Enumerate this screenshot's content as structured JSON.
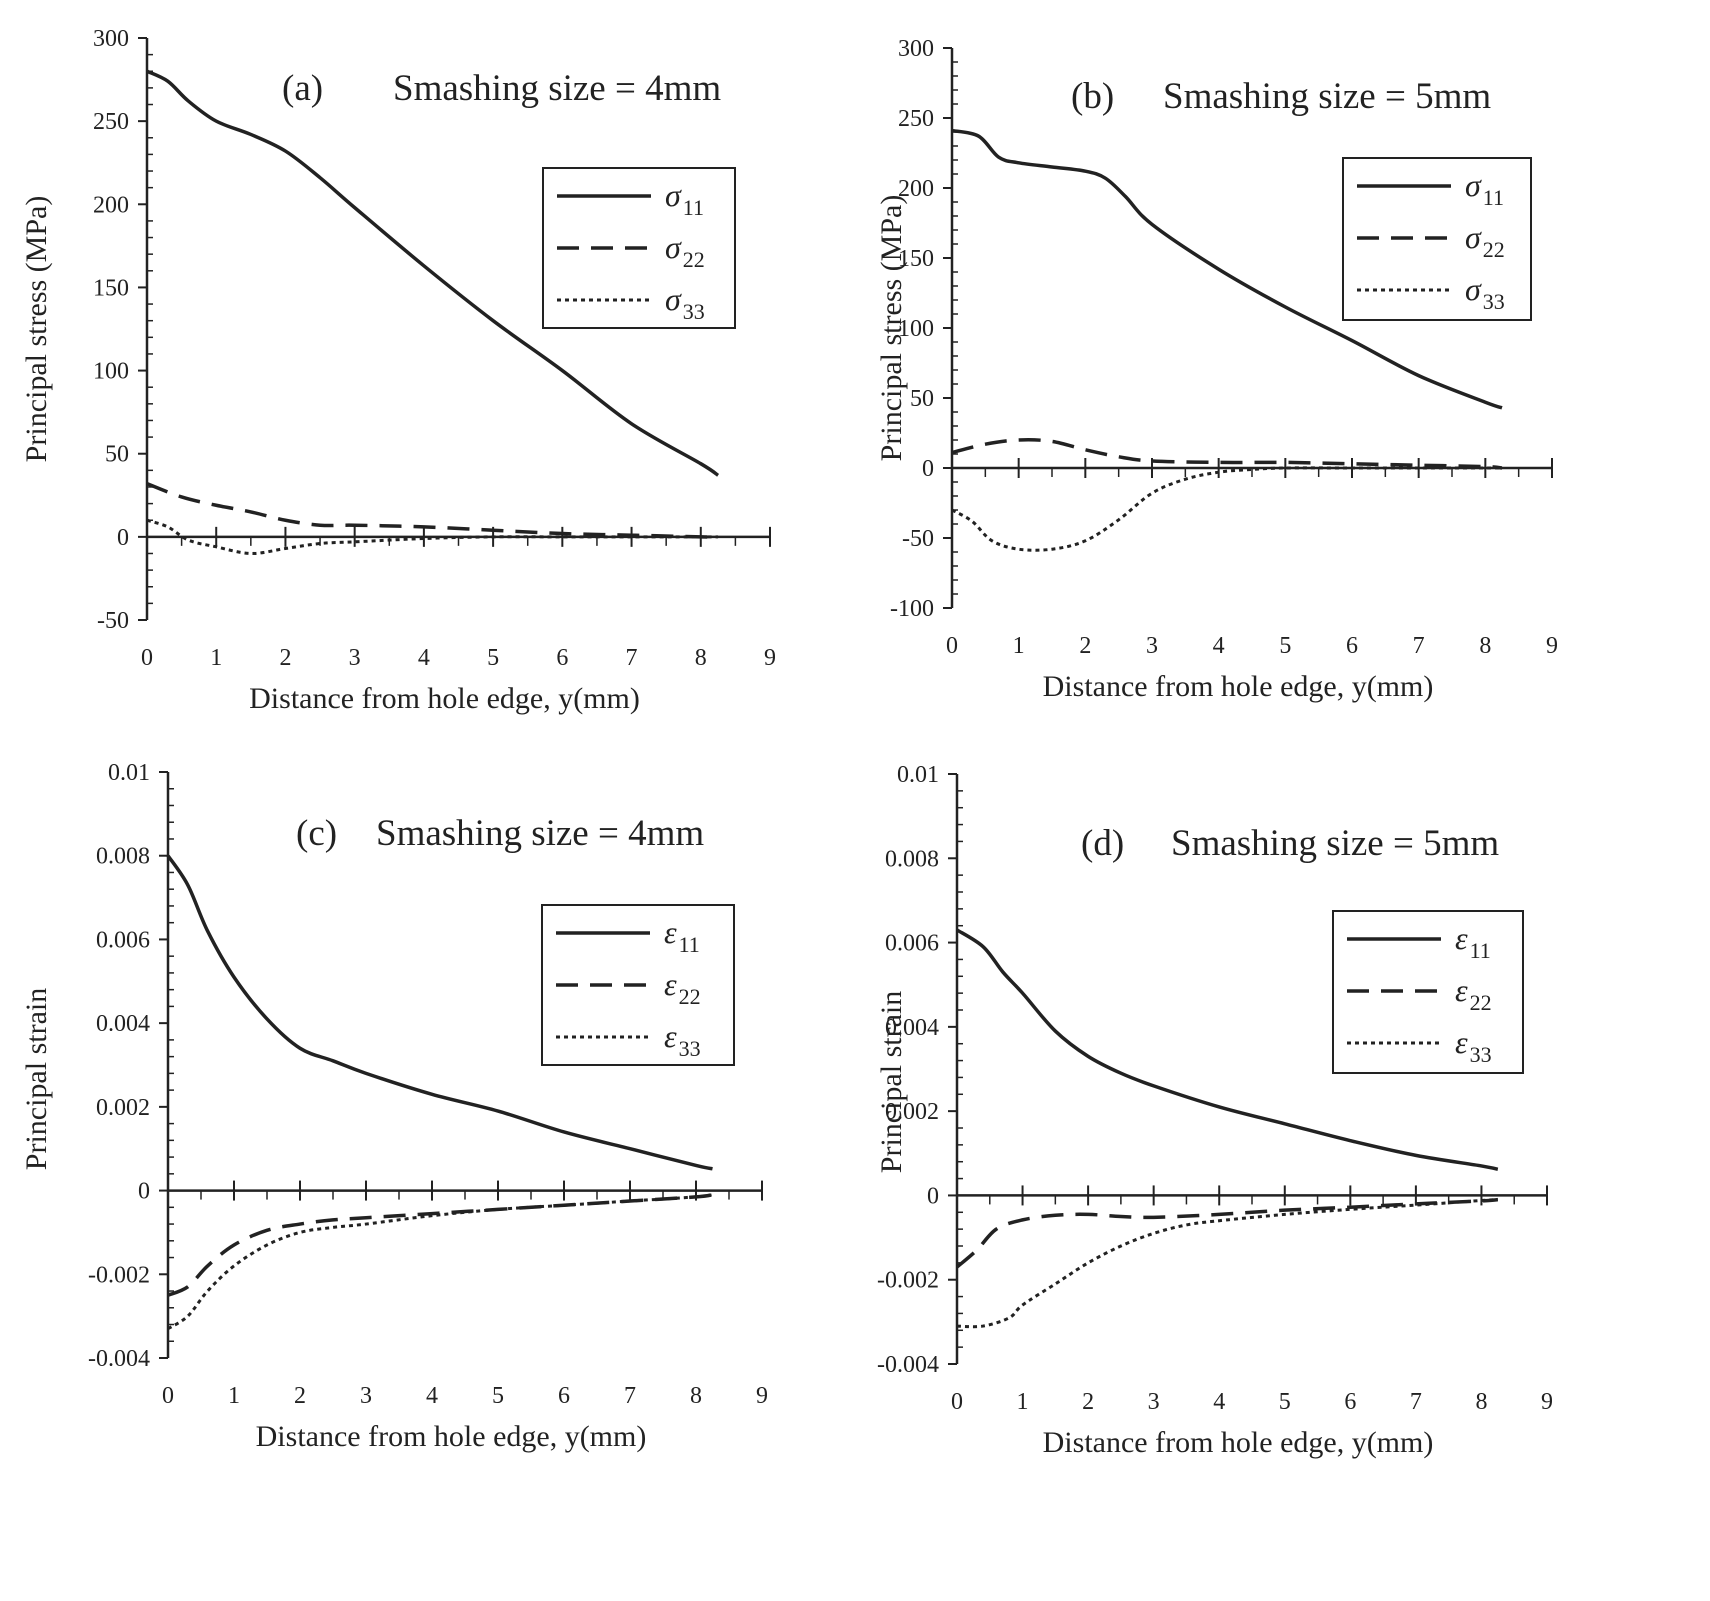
{
  "chart_data": [
    {
      "type": "line",
      "panel": "(a)",
      "title": "Smashing size = 4mm",
      "xlabel": "Distance from hole edge, y(mm)",
      "ylabel": "Principal stress (MPa)",
      "xlim": [
        0,
        9
      ],
      "ylim": [
        -50,
        300
      ],
      "xticks": [
        0,
        1,
        2,
        3,
        4,
        5,
        6,
        7,
        8,
        9
      ],
      "yticks": [
        -50,
        0,
        50,
        100,
        150,
        200,
        250,
        300
      ],
      "grid": false,
      "legend_position": "right",
      "series": [
        {
          "name": "σ11",
          "symbol": "σ",
          "sub": "11",
          "style": "solid",
          "x": [
            0,
            0.3,
            0.6,
            1,
            1.5,
            2,
            2.5,
            3,
            4,
            5,
            6,
            7,
            8,
            8.25
          ],
          "y": [
            280,
            274,
            262,
            250,
            242,
            232,
            216,
            198,
            163,
            130,
            100,
            68,
            44,
            37
          ]
        },
        {
          "name": "σ22",
          "symbol": "σ",
          "sub": "22",
          "style": "dashed",
          "x": [
            0,
            0.5,
            1,
            1.5,
            2,
            2.5,
            3,
            4,
            5,
            6,
            7,
            8,
            8.25
          ],
          "y": [
            32,
            24,
            19,
            15,
            10,
            7,
            7,
            6,
            4,
            2,
            1,
            0,
            0
          ]
        },
        {
          "name": "σ33",
          "symbol": "σ",
          "sub": "33",
          "style": "dotted",
          "x": [
            0,
            0.3,
            0.6,
            1,
            1.5,
            2,
            2.5,
            3,
            4,
            5,
            6,
            7,
            8,
            8.25
          ],
          "y": [
            10,
            6,
            -2,
            -6,
            -10,
            -7,
            -4,
            -3,
            -1,
            0,
            0,
            0,
            0,
            0
          ]
        }
      ]
    },
    {
      "type": "line",
      "panel": "(b)",
      "title": "Smashing size = 5mm",
      "xlabel": "Distance from hole edge, y(mm)",
      "ylabel": "Principal stress (MPa)",
      "xlim": [
        0,
        9
      ],
      "ylim": [
        -100,
        300
      ],
      "xticks": [
        0,
        1,
        2,
        3,
        4,
        5,
        6,
        7,
        8,
        9
      ],
      "yticks": [
        -100,
        -50,
        0,
        50,
        100,
        150,
        200,
        250,
        300
      ],
      "grid": false,
      "legend_position": "right",
      "series": [
        {
          "name": "σ11",
          "symbol": "σ",
          "sub": "11",
          "style": "solid",
          "x": [
            0,
            0.4,
            0.7,
            1,
            1.5,
            2,
            2.3,
            2.6,
            3,
            4,
            5,
            6,
            7,
            8,
            8.25
          ],
          "y": [
            241,
            237,
            222,
            218,
            215,
            212,
            207,
            194,
            174,
            142,
            115,
            91,
            66,
            47,
            43
          ]
        },
        {
          "name": "σ22",
          "symbol": "σ",
          "sub": "22",
          "style": "dashed",
          "x": [
            0,
            0.5,
            1,
            1.5,
            2,
            2.5,
            3,
            4,
            5,
            6,
            7,
            8,
            8.25
          ],
          "y": [
            11,
            17,
            20,
            19,
            13,
            8,
            5,
            4,
            4,
            3,
            2,
            1,
            0
          ]
        },
        {
          "name": "σ33",
          "symbol": "σ",
          "sub": "33",
          "style": "dotted",
          "x": [
            0,
            0.3,
            0.6,
            1,
            1.5,
            2,
            2.5,
            3,
            3.5,
            4,
            4.5,
            5,
            6,
            7,
            8,
            8.25
          ],
          "y": [
            -30,
            -38,
            -52,
            -58,
            -58,
            -52,
            -37,
            -18,
            -8,
            -3,
            -1,
            0,
            0,
            0,
            0,
            0
          ]
        }
      ]
    },
    {
      "type": "line",
      "panel": "(c)",
      "title": "Smashing size = 4mm",
      "xlabel": "Distance from hole edge, y(mm)",
      "ylabel": "Principal strain",
      "xlim": [
        0,
        9
      ],
      "ylim": [
        -0.004,
        0.01
      ],
      "xticks": [
        0,
        1,
        2,
        3,
        4,
        5,
        6,
        7,
        8,
        9
      ],
      "yticks": [
        -0.004,
        -0.002,
        0,
        0.002,
        0.004,
        0.006,
        0.008,
        0.01
      ],
      "ytick_labels": [
        "-0.004",
        "-0.002",
        "0",
        "0.002",
        "0.004",
        "0.006",
        "0.008",
        "0.01"
      ],
      "grid": false,
      "legend_position": "right",
      "series": [
        {
          "name": "ε11",
          "symbol": "ε",
          "sub": "11",
          "style": "solid",
          "x": [
            0,
            0.3,
            0.6,
            1,
            1.5,
            2,
            2.5,
            3,
            4,
            5,
            6,
            7,
            8,
            8.25
          ],
          "y": [
            0.008,
            0.0073,
            0.0062,
            0.0051,
            0.0041,
            0.0034,
            0.0031,
            0.0028,
            0.0023,
            0.0019,
            0.0014,
            0.001,
            0.0006,
            0.00052
          ]
        },
        {
          "name": "ε22",
          "symbol": "ε",
          "sub": "22",
          "style": "dashed",
          "x": [
            0,
            0.3,
            0.6,
            1,
            1.5,
            2,
            2.5,
            3,
            4,
            5,
            6,
            7,
            8,
            8.25
          ],
          "y": [
            -0.0025,
            -0.0023,
            -0.0018,
            -0.0013,
            -0.00095,
            -0.0008,
            -0.0007,
            -0.00065,
            -0.00055,
            -0.00045,
            -0.00035,
            -0.00025,
            -0.00015,
            -0.0001
          ]
        },
        {
          "name": "ε33",
          "symbol": "ε",
          "sub": "33",
          "style": "dotted",
          "x": [
            0,
            0.3,
            0.6,
            1,
            1.5,
            2,
            2.5,
            3,
            4,
            5,
            6,
            7,
            8,
            8.25
          ],
          "y": [
            -0.0033,
            -0.003,
            -0.0024,
            -0.0018,
            -0.0013,
            -0.001,
            -0.00088,
            -0.0008,
            -0.0006,
            -0.00045,
            -0.00035,
            -0.00025,
            -0.00015,
            -0.0001
          ]
        }
      ]
    },
    {
      "type": "line",
      "panel": "(d)",
      "title": "Smashing size = 5mm",
      "xlabel": "Distance from hole edge, y(mm)",
      "ylabel": "Principal strain",
      "xlim": [
        0,
        9
      ],
      "ylim": [
        -0.004,
        0.01
      ],
      "xticks": [
        0,
        1,
        2,
        3,
        4,
        5,
        6,
        7,
        8,
        9
      ],
      "yticks": [
        -0.004,
        -0.002,
        0,
        0.002,
        0.004,
        0.006,
        0.008,
        0.01
      ],
      "ytick_labels": [
        "-0.004",
        "-0.002",
        "0",
        "0.002",
        "0.004",
        "0.006",
        "0.008",
        "0.01"
      ],
      "grid": false,
      "legend_position": "right",
      "series": [
        {
          "name": "ε11",
          "symbol": "ε",
          "sub": "11",
          "style": "solid",
          "x": [
            0,
            0.4,
            0.7,
            1,
            1.5,
            2,
            2.5,
            3,
            4,
            5,
            6,
            7,
            8,
            8.25
          ],
          "y": [
            0.0063,
            0.0059,
            0.0053,
            0.0048,
            0.0039,
            0.0033,
            0.0029,
            0.0026,
            0.0021,
            0.0017,
            0.0013,
            0.00095,
            0.0007,
            0.00062
          ]
        },
        {
          "name": "ε22",
          "symbol": "ε",
          "sub": "22",
          "style": "dashed",
          "x": [
            0,
            0.3,
            0.6,
            1,
            1.5,
            2,
            2.5,
            3,
            4,
            5,
            6,
            7,
            8,
            8.25
          ],
          "y": [
            -0.0017,
            -0.0013,
            -0.0008,
            -0.00058,
            -0.00047,
            -0.00045,
            -0.0005,
            -0.00052,
            -0.00045,
            -0.00035,
            -0.00028,
            -0.0002,
            -0.00013,
            -0.0001
          ]
        },
        {
          "name": "ε33",
          "symbol": "ε",
          "sub": "33",
          "style": "dotted",
          "x": [
            0,
            0.4,
            0.8,
            1,
            1.5,
            2,
            2.5,
            3,
            3.5,
            4,
            5,
            6,
            7,
            8,
            8.25
          ],
          "y": [
            -0.0031,
            -0.0031,
            -0.0029,
            -0.0026,
            -0.0021,
            -0.0016,
            -0.0012,
            -0.0009,
            -0.0007,
            -0.0006,
            -0.00045,
            -0.00033,
            -0.00023,
            -0.00012,
            -0.0001
          ]
        }
      ]
    }
  ]
}
